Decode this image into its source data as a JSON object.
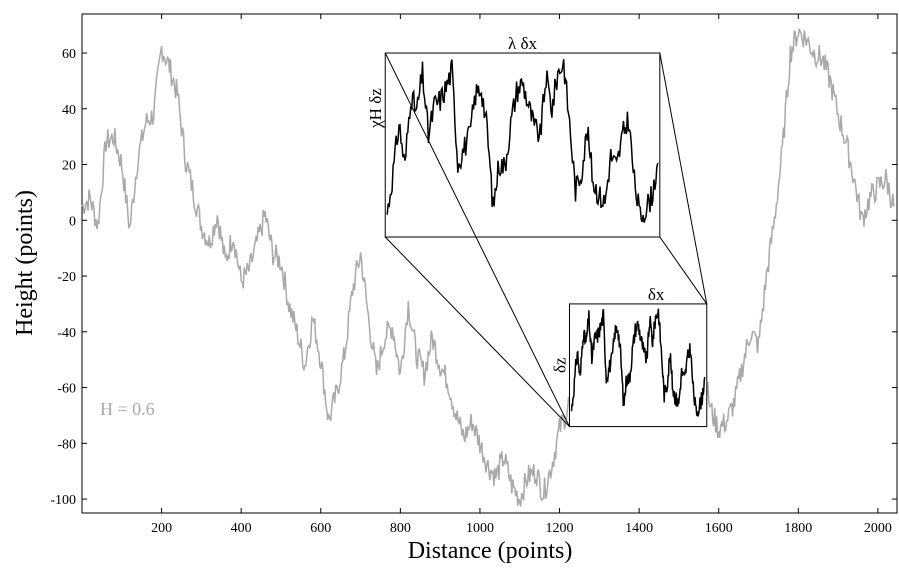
{
  "chart_data": {
    "type": "line",
    "title": "",
    "xlabel": "Distance (points)",
    "ylabel": "Height (points)",
    "xlim": [
      0,
      2048
    ],
    "ylim": [
      -105,
      74
    ],
    "xticks": [
      200,
      400,
      600,
      800,
      1000,
      1200,
      1400,
      1600,
      1800,
      2000
    ],
    "yticks": [
      -100,
      -80,
      -60,
      -40,
      -20,
      0,
      20,
      40,
      60
    ],
    "grid": false,
    "legend": "none",
    "annotation": "H  = 0.6",
    "series": [
      {
        "color": "#a9a9a9",
        "x": [
          0,
          20,
          40,
          60,
          80,
          100,
          120,
          140,
          160,
          180,
          200,
          220,
          240,
          260,
          280,
          300,
          320,
          340,
          360,
          380,
          400,
          420,
          440,
          460,
          480,
          500,
          520,
          540,
          560,
          580,
          600,
          620,
          640,
          660,
          680,
          700,
          720,
          740,
          760,
          780,
          800,
          820,
          840,
          860,
          880,
          900,
          920,
          940,
          960,
          980,
          1000,
          1020,
          1040,
          1060,
          1080,
          1100,
          1120,
          1140,
          1160,
          1180,
          1200,
          1220,
          1240,
          1260,
          1280,
          1300,
          1320,
          1340,
          1360,
          1380,
          1400,
          1420,
          1440,
          1460,
          1480,
          1500,
          1520,
          1540,
          1560,
          1580,
          1600,
          1620,
          1640,
          1660,
          1680,
          1700,
          1720,
          1740,
          1760,
          1780,
          1800,
          1820,
          1840,
          1860,
          1880,
          1900,
          1920,
          1940,
          1960,
          1980,
          2000,
          2020,
          2040
        ],
        "y": [
          5,
          8,
          -2,
          28,
          30,
          20,
          -3,
          22,
          35,
          38,
          62,
          55,
          45,
          22,
          10,
          -2,
          -8,
          2,
          -15,
          -5,
          -22,
          -18,
          -8,
          2,
          -12,
          -15,
          -30,
          -40,
          -52,
          -35,
          -50,
          -72,
          -62,
          -48,
          -25,
          -12,
          -35,
          -55,
          -42,
          -38,
          -55,
          -30,
          -48,
          -55,
          -42,
          -52,
          -58,
          -70,
          -78,
          -72,
          -80,
          -88,
          -92,
          -85,
          -95,
          -100,
          -92,
          -90,
          -98,
          -88,
          -75,
          -68,
          -52,
          -58,
          -45,
          -50,
          -62,
          -45,
          -38,
          -60,
          -55,
          -48,
          -35,
          -40,
          -45,
          -40,
          -38,
          -48,
          -52,
          -68,
          -75,
          -72,
          -65,
          -52,
          -40,
          -45,
          -20,
          0,
          25,
          60,
          68,
          65,
          60,
          58,
          50,
          38,
          28,
          15,
          0,
          8,
          12,
          15,
          5
        ]
      }
    ],
    "inset": {
      "label_x": "δx",
      "label_z": "δz",
      "x_range": [
        1225,
        1570
      ],
      "y_range": [
        -74,
        -30
      ],
      "zoomed_label_x": "λ δx",
      "zoomed_label_z": "χH δz",
      "zoomed_label_z_sup": "H",
      "zoomed_y_range": [
        -6,
        60
      ],
      "zoomed_x_range": [
        762,
        1452
      ],
      "profile": [
        12,
        35,
        62,
        38,
        78,
        68,
        90,
        55,
        72,
        75,
        82,
        92,
        40,
        48,
        55,
        78,
        82,
        58,
        15,
        40,
        38,
        62,
        80,
        85,
        72,
        60,
        55,
        88,
        70,
        90,
        96,
        62,
        25,
        35,
        58,
        30,
        22,
        18,
        44,
        38,
        55,
        65,
        30,
        10,
        15,
        22,
        40
      ]
    }
  }
}
